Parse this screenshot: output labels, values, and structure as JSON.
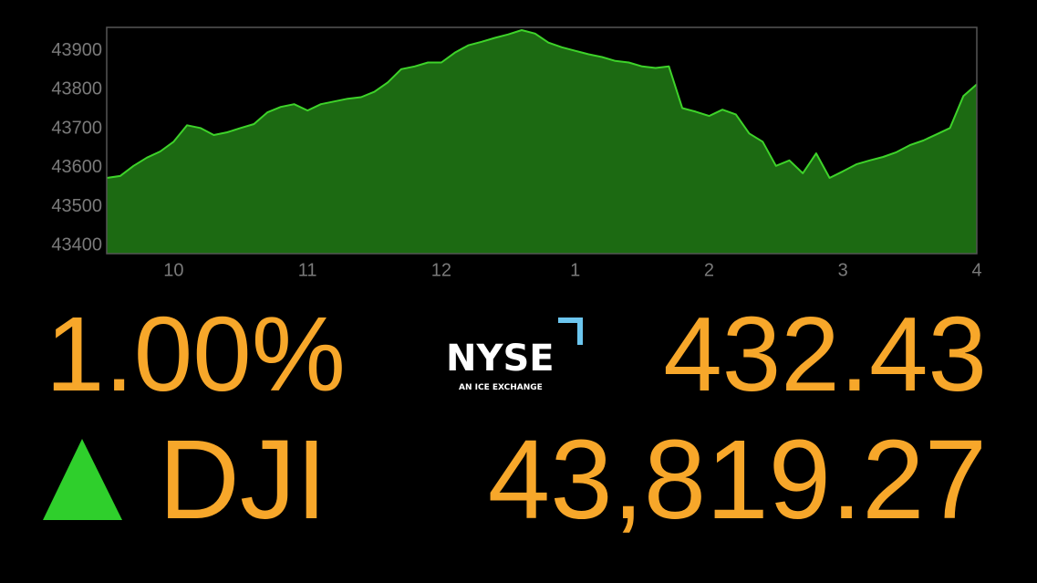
{
  "chart_data": {
    "type": "area",
    "x": [
      9.5,
      9.6,
      9.7,
      9.8,
      9.9,
      10.0,
      10.1,
      10.2,
      10.3,
      10.4,
      10.5,
      10.6,
      10.7,
      10.8,
      10.9,
      11.0,
      11.1,
      11.2,
      11.3,
      11.4,
      11.5,
      11.6,
      11.7,
      11.8,
      11.9,
      12.0,
      12.1,
      12.2,
      12.3,
      12.4,
      12.5,
      12.6,
      12.7,
      12.8,
      12.9,
      13.0,
      13.1,
      13.2,
      13.3,
      13.4,
      13.5,
      13.6,
      13.7,
      13.8,
      13.9,
      14.0,
      14.1,
      14.2,
      14.3,
      14.4,
      14.5,
      14.6,
      14.7,
      14.8,
      14.9,
      15.0,
      15.1,
      15.2,
      15.3,
      15.4,
      15.5,
      15.6,
      15.7,
      15.8,
      15.9,
      16.0
    ],
    "values": [
      43574,
      43579,
      43605,
      43626,
      43642,
      43667,
      43709,
      43702,
      43684,
      43691,
      43702,
      43712,
      43742,
      43756,
      43763,
      43747,
      43763,
      43770,
      43777,
      43781,
      43795,
      43819,
      43853,
      43860,
      43870,
      43870,
      43895,
      43914,
      43923,
      43933,
      43942,
      43953,
      43944,
      43921,
      43909,
      43900,
      43891,
      43884,
      43874,
      43870,
      43860,
      43856,
      43860,
      43753,
      43744,
      43733,
      43749,
      43737,
      43688,
      43667,
      43605,
      43619,
      43586,
      43637,
      43574,
      43591,
      43609,
      43619,
      43628,
      43640,
      43658,
      43670,
      43686,
      43702,
      43784,
      43814
    ],
    "color": "#3ed32a",
    "fill": "#1c6a12",
    "xlim": [
      9.5,
      16
    ],
    "xticks": [
      10,
      11,
      12,
      {
        "value": 13,
        "label": "1"
      },
      {
        "value": 14,
        "label": "2"
      },
      {
        "value": 15,
        "label": "3"
      },
      {
        "value": 16,
        "label": "4"
      }
    ],
    "ylim": [
      43380,
      43960
    ],
    "yticks": [
      43400,
      43500,
      43600,
      43700,
      43800,
      43900
    ]
  },
  "quote": {
    "change_percent": "1.00%",
    "symbol": "DJI",
    "change": "432.43",
    "value": "43,819.27"
  },
  "logo": {
    "name": "NYSE",
    "tagline": "AN ICE EXCHANGE"
  }
}
